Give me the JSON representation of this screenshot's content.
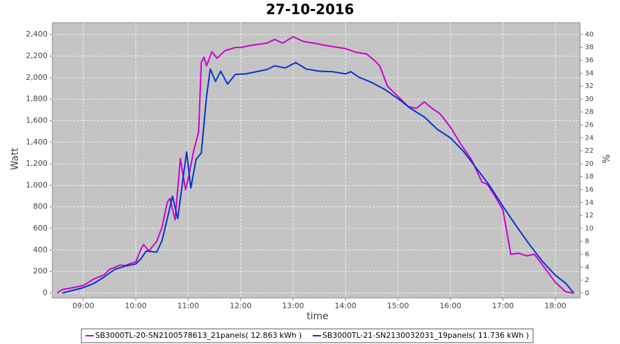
{
  "chart_data": {
    "type": "line",
    "title": "27-10-2016",
    "xlabel": "time",
    "ylabel": "Watt",
    "y2label": "%",
    "xlim": [
      8.41,
      18.47
    ],
    "ylim": [
      -45,
      2510
    ],
    "y2lim": [
      -0.75,
      41.8
    ],
    "xticks": [
      {
        "value": 9,
        "label": "09:00"
      },
      {
        "value": 10,
        "label": "10:00"
      },
      {
        "value": 11,
        "label": "11:00"
      },
      {
        "value": 12,
        "label": "12:00"
      },
      {
        "value": 13,
        "label": "13:00"
      },
      {
        "value": 14,
        "label": "14:00"
      },
      {
        "value": 15,
        "label": "15:00"
      },
      {
        "value": 16,
        "label": "16:00"
      },
      {
        "value": 17,
        "label": "17:00"
      },
      {
        "value": 18,
        "label": "18:00"
      }
    ],
    "yticks": [
      0,
      200,
      400,
      600,
      800,
      {
        "value": 1000,
        "label": "1,000"
      },
      {
        "value": 1200,
        "label": "1,200"
      },
      {
        "value": 1400,
        "label": "1,400"
      },
      {
        "value": 1600,
        "label": "1,600"
      },
      {
        "value": 1800,
        "label": "1,800"
      },
      {
        "value": 2000,
        "label": "2,000"
      },
      {
        "value": 2200,
        "label": "2,200"
      },
      {
        "value": 2400,
        "label": "2,400"
      }
    ],
    "y2ticks": [
      0,
      2,
      4,
      6,
      8,
      10,
      12,
      14,
      16,
      18,
      20,
      22,
      24,
      26,
      28,
      30,
      32,
      34,
      36,
      38,
      40
    ],
    "grid": true,
    "legend": "bottom",
    "series": [
      {
        "name": "SB3000TL-20-SN2100578613_21panels( 12.863 kWh )",
        "color": "#cc00cc",
        "x": [
          8.5,
          8.6,
          8.8,
          9.0,
          9.2,
          9.4,
          9.5,
          9.6,
          9.7,
          9.8,
          9.9,
          10.0,
          10.1,
          10.15,
          10.25,
          10.4,
          10.5,
          10.6,
          10.65,
          10.75,
          10.85,
          10.95,
          11.0,
          11.1,
          11.2,
          11.25,
          11.3,
          11.35,
          11.45,
          11.55,
          11.7,
          11.9,
          12.0,
          12.2,
          12.5,
          12.65,
          12.8,
          13.0,
          13.2,
          13.4,
          13.6,
          13.8,
          14.0,
          14.2,
          14.4,
          14.55,
          14.65,
          14.8,
          15.0,
          15.2,
          15.35,
          15.5,
          15.65,
          15.8,
          16.0,
          16.2,
          16.4,
          16.6,
          16.7,
          16.85,
          17.0,
          17.15,
          17.3,
          17.45,
          17.6,
          17.8,
          18.0,
          18.2,
          18.35
        ],
        "values": [
          0,
          32,
          50,
          70,
          130,
          170,
          220,
          240,
          260,
          255,
          275,
          290,
          410,
          450,
          390,
          480,
          610,
          840,
          880,
          680,
          1250,
          960,
          1060,
          1310,
          1500,
          2140,
          2190,
          2110,
          2240,
          2180,
          2250,
          2280,
          2280,
          2300,
          2320,
          2355,
          2320,
          2380,
          2335,
          2320,
          2300,
          2285,
          2270,
          2235,
          2220,
          2160,
          2110,
          1920,
          1825,
          1730,
          1715,
          1775,
          1715,
          1665,
          1540,
          1380,
          1240,
          1030,
          1010,
          900,
          770,
          360,
          370,
          345,
          360,
          230,
          100,
          10,
          0
        ]
      },
      {
        "name": "SB3000TL-21-SN2130032031_19panels( 11.736 kWh )",
        "color": "#0033cc",
        "x": [
          8.6,
          8.8,
          9.0,
          9.2,
          9.4,
          9.6,
          9.8,
          10.0,
          10.1,
          10.2,
          10.4,
          10.5,
          10.6,
          10.7,
          10.8,
          10.9,
          10.97,
          11.05,
          11.15,
          11.25,
          11.35,
          11.42,
          11.52,
          11.62,
          11.75,
          11.9,
          12.1,
          12.3,
          12.5,
          12.65,
          12.85,
          13.05,
          13.25,
          13.5,
          13.75,
          14.0,
          14.1,
          14.25,
          14.5,
          14.75,
          15.0,
          15.25,
          15.5,
          15.75,
          16.0,
          16.25,
          16.5,
          16.75,
          17.0,
          17.25,
          17.5,
          17.75,
          18.0,
          18.2,
          18.35
        ],
        "values": [
          0,
          25,
          50,
          90,
          150,
          220,
          250,
          270,
          320,
          390,
          380,
          485,
          690,
          900,
          690,
          1060,
          1310,
          975,
          1240,
          1300,
          1830,
          2080,
          1965,
          2060,
          1940,
          2030,
          2035,
          2055,
          2075,
          2110,
          2090,
          2140,
          2080,
          2060,
          2055,
          2035,
          2055,
          2005,
          1955,
          1890,
          1805,
          1710,
          1635,
          1520,
          1440,
          1315,
          1155,
          995,
          805,
          625,
          455,
          295,
          165,
          90,
          0
        ]
      }
    ]
  }
}
